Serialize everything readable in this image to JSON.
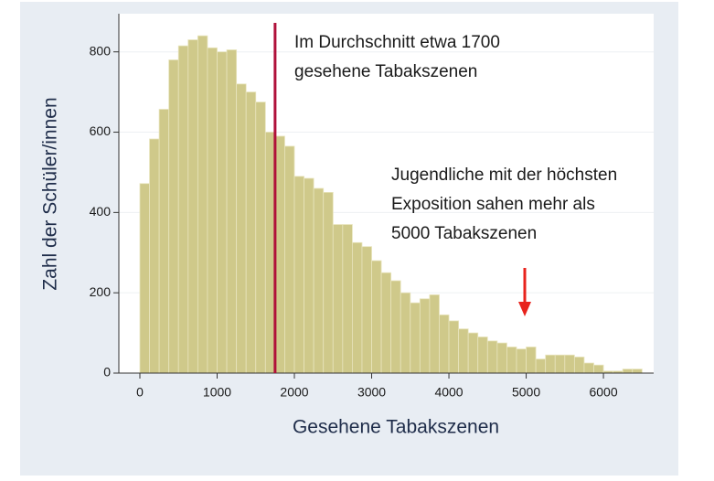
{
  "chart_data": {
    "type": "histogram",
    "xlabel": "Gesehene Tabakszenen",
    "ylabel": "Zahl der Schüler/innen",
    "bins": [
      0,
      125,
      250,
      375,
      500,
      625,
      750,
      875,
      1000,
      1125,
      1250,
      1375,
      1500,
      1625,
      1750,
      1875,
      2000,
      2125,
      2250,
      2375,
      2500,
      2625,
      2750,
      2875,
      3000,
      3125,
      3250,
      3375,
      3500,
      3625,
      3750,
      3875,
      4000,
      4125,
      4250,
      4375,
      4500,
      4625,
      4750,
      4875,
      5000,
      5125,
      5250,
      5375,
      5500,
      5625,
      5750,
      5875,
      6000,
      6125,
      6250,
      6375,
      6500
    ],
    "values": [
      472,
      583,
      657,
      780,
      815,
      830,
      840,
      810,
      800,
      805,
      720,
      700,
      675,
      600,
      590,
      565,
      490,
      485,
      460,
      450,
      370,
      370,
      325,
      315,
      280,
      250,
      230,
      200,
      175,
      185,
      195,
      145,
      130,
      110,
      100,
      90,
      80,
      75,
      65,
      60,
      65,
      35,
      45,
      45,
      45,
      40,
      25,
      20,
      5,
      5,
      10,
      10
    ],
    "color": "#cfc98a",
    "xlim": [
      -272,
      6650
    ],
    "ylim": [
      0,
      895
    ],
    "xticks": [
      0,
      1000,
      2000,
      3000,
      4000,
      5000,
      6000
    ],
    "yticks": [
      0,
      200,
      400,
      600,
      800
    ],
    "grid": true,
    "mean_line": 1750,
    "mean_color": "#b0103a",
    "annotations": [
      {
        "lines": [
          "Im Durchschnitt etwa 1700",
          "gesehene Tabakszenen"
        ]
      },
      {
        "lines": [
          "Jugendliche mit der höchsten",
          "Exposition sahen mehr als",
          "5000 Tabakszenen"
        ]
      }
    ]
  }
}
